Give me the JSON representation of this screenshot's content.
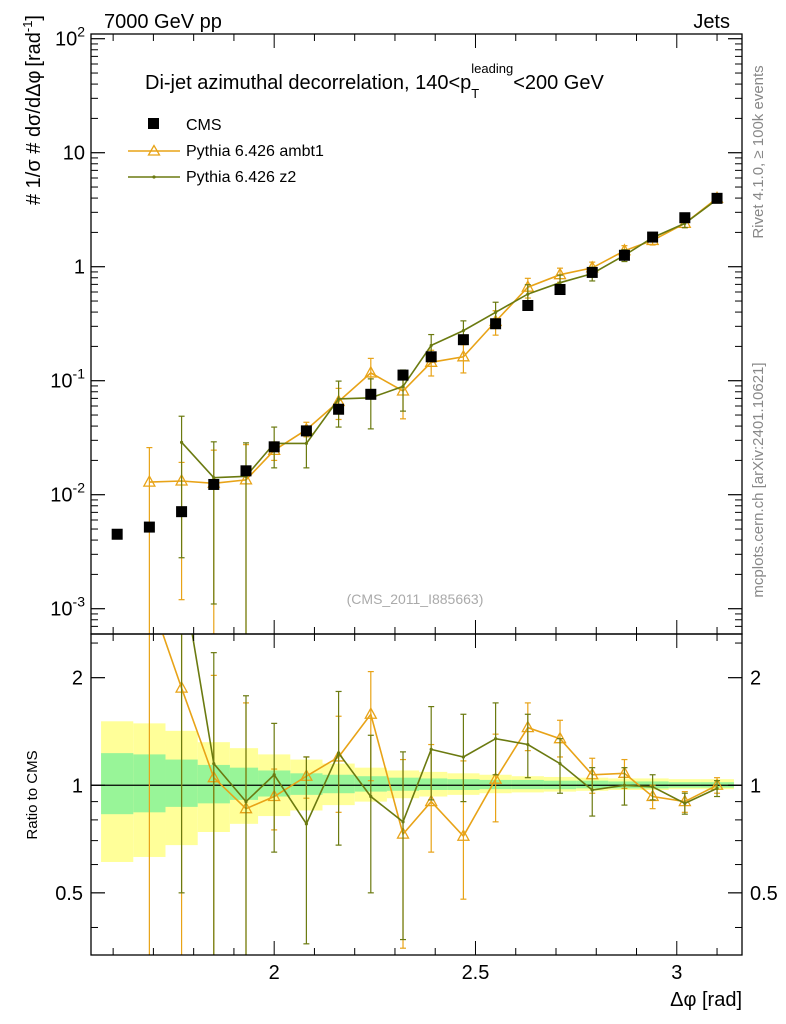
{
  "header": {
    "left": "7000 GeV pp",
    "right": "Jets"
  },
  "side_text": {
    "top": "Rivet 4.1.0, ≥ 100k events",
    "bottom": "mcplots.cern.ch [arXiv:2401.10621]"
  },
  "colors": {
    "data": "#000000",
    "ambt1": "#e8a317",
    "z2": "#6b7a10",
    "band_inner": "#98f598",
    "band_outer": "#ffff99",
    "frame": "#000000"
  },
  "chart_data": [
    {
      "type": "scatter",
      "panel": "main",
      "title_prefix": "Di-jet azimuthal decorrelation, 140<p",
      "title_sub": "T",
      "title_sup": "leading",
      "title_suffix": "<200 GeV",
      "ylabel_text": "# 1/σ # dσ/dΔφ",
      "ylabel_unit": "[rad",
      "ylabel_unit_sup": "-1",
      "ylabel_unit_close": "]",
      "yscale": "log",
      "ylim": [
        0.0006,
        110
      ],
      "xlim": [
        1.545,
        3.162
      ],
      "ytick_values": [
        0.001,
        0.01,
        0.1,
        1,
        10,
        100
      ],
      "ytick_base": "10",
      "ytick_exponents": [
        "-3",
        "-2",
        "-1",
        "",
        "",
        "2"
      ],
      "ytick_plain": [
        "",
        "",
        "",
        "1",
        "10",
        ""
      ],
      "annotation": "(CMS_2011_I885663)",
      "legend": [
        "CMS",
        "Pythia 6.426 ambt1",
        "Pythia 6.426 z2"
      ],
      "x": [
        1.61,
        1.69,
        1.77,
        1.85,
        1.93,
        2.0,
        2.08,
        2.16,
        2.24,
        2.32,
        2.39,
        2.47,
        2.55,
        2.63,
        2.71,
        2.79,
        2.87,
        2.94,
        3.02,
        3.1
      ],
      "series": [
        {
          "name": "CMS",
          "values": [
            0.0045,
            0.0052,
            0.0071,
            0.0123,
            0.0162,
            0.0263,
            0.0363,
            0.0562,
            0.076,
            0.112,
            0.162,
            0.229,
            0.316,
            0.457,
            0.631,
            0.891,
            1.26,
            1.82,
            2.69,
            3.98
          ]
        },
        {
          "name": "Pythia 6.426 ambt1",
          "values": [
            null,
            0.0129,
            0.0132,
            0.0126,
            0.0135,
            0.0245,
            0.0372,
            0.0657,
            0.117,
            0.0813,
            0.145,
            0.162,
            0.331,
            0.661,
            0.851,
            0.977,
            1.38,
            1.7,
            2.4,
            3.98
          ],
          "err_lo": [
            null,
            0.0126,
            0.012,
            0.012,
            0.013,
            0.0045,
            0.005,
            0.02,
            0.04,
            0.035,
            0.035,
            0.045,
            0.08,
            0.13,
            0.12,
            0.12,
            0.15,
            0.15,
            0.2,
            0.25
          ],
          "err_hi": [
            null,
            0.013,
            0.006,
            0.012,
            0.014,
            0.0045,
            0.006,
            0.02,
            0.04,
            0.035,
            0.04,
            0.045,
            0.08,
            0.13,
            0.12,
            0.12,
            0.15,
            0.15,
            0.2,
            0.25
          ]
        },
        {
          "name": "Pythia 6.426 z2",
          "values": [
            null,
            null,
            0.0288,
            0.0141,
            0.0145,
            0.0282,
            0.0282,
            0.0692,
            0.0708,
            0.0891,
            0.204,
            0.275,
            0.398,
            0.575,
            0.724,
            0.87,
            1.26,
            1.8,
            2.4,
            3.89
          ],
          "err_lo": [
            null,
            null,
            0.026,
            0.013,
            0.014,
            0.011,
            0.011,
            0.03,
            0.033,
            0.035,
            0.05,
            0.06,
            0.09,
            0.12,
            0.12,
            0.12,
            0.15,
            0.15,
            0.2,
            0.25
          ],
          "err_hi": [
            null,
            null,
            0.02,
            0.015,
            0.014,
            0.011,
            0.011,
            0.03,
            0.033,
            0.035,
            0.05,
            0.06,
            0.09,
            0.12,
            0.12,
            0.12,
            0.15,
            0.15,
            0.2,
            0.25
          ]
        }
      ]
    },
    {
      "type": "line",
      "panel": "ratio",
      "ylabel": "Ratio to CMS",
      "yscale": "log",
      "ylim": [
        0.335,
        2.65
      ],
      "xlim": [
        1.545,
        3.162
      ],
      "xlabel": "Δφ [rad]",
      "ytick_values": [
        0.5,
        1,
        2
      ],
      "ytick_labels": [
        "0.5",
        "1",
        "2"
      ],
      "xtick_values": [
        2,
        2.5,
        3
      ],
      "xtick_labels": [
        "2",
        "2.5",
        "3"
      ],
      "x": [
        1.61,
        1.69,
        1.77,
        1.85,
        1.93,
        2.0,
        2.08,
        2.16,
        2.24,
        2.32,
        2.39,
        2.47,
        2.55,
        2.63,
        2.71,
        2.79,
        2.87,
        2.94,
        3.02,
        3.1
      ],
      "band_edges": [
        1.57,
        1.65,
        1.73,
        1.81,
        1.89,
        1.96,
        2.04,
        2.12,
        2.2,
        2.28,
        2.36,
        2.43,
        2.51,
        2.59,
        2.67,
        2.75,
        2.83,
        2.9,
        2.98,
        3.06,
        3.142
      ],
      "band_inner": [
        [
          0.83,
          1.23
        ],
        [
          0.84,
          1.22
        ],
        [
          0.87,
          1.18
        ],
        [
          0.89,
          1.14
        ],
        [
          0.91,
          1.12
        ],
        [
          0.93,
          1.1
        ],
        [
          0.94,
          1.08
        ],
        [
          0.95,
          1.07
        ],
        [
          0.96,
          1.06
        ],
        [
          0.965,
          1.05
        ],
        [
          0.97,
          1.045
        ],
        [
          0.97,
          1.04
        ],
        [
          0.975,
          1.035
        ],
        [
          0.975,
          1.035
        ],
        [
          0.975,
          1.03
        ],
        [
          0.98,
          1.03
        ],
        [
          0.98,
          1.025
        ],
        [
          0.98,
          1.025
        ],
        [
          0.985,
          1.02
        ],
        [
          0.985,
          1.02
        ]
      ],
      "band_outer": [
        [
          0.61,
          1.51
        ],
        [
          0.63,
          1.49
        ],
        [
          0.68,
          1.42
        ],
        [
          0.74,
          1.32
        ],
        [
          0.78,
          1.27
        ],
        [
          0.82,
          1.22
        ],
        [
          0.85,
          1.18
        ],
        [
          0.88,
          1.15
        ],
        [
          0.9,
          1.12
        ],
        [
          0.92,
          1.1
        ],
        [
          0.93,
          1.09
        ],
        [
          0.94,
          1.08
        ],
        [
          0.95,
          1.07
        ],
        [
          0.955,
          1.06
        ],
        [
          0.96,
          1.055
        ],
        [
          0.965,
          1.05
        ],
        [
          0.97,
          1.045
        ],
        [
          0.97,
          1.045
        ],
        [
          0.975,
          1.04
        ],
        [
          0.975,
          1.04
        ]
      ],
      "series": [
        {
          "name": "Pythia 6.426 ambt1",
          "values": [
            null,
            3.4,
            1.87,
            1.05,
            0.86,
            0.93,
            1.06,
            1.2,
            1.58,
            0.73,
            0.9,
            0.72,
            1.04,
            1.45,
            1.35,
            1.07,
            1.08,
            0.93,
            0.9,
            1.0
          ],
          "err_lo": [
            null,
            3.3,
            1.55,
            0.98,
            0.84,
            0.18,
            0.14,
            0.36,
            0.55,
            0.38,
            0.25,
            0.24,
            0.25,
            0.2,
            0.15,
            0.12,
            0.1,
            0.07,
            0.06,
            0.05
          ],
          "err_hi": [
            null,
            3.3,
            0.85,
            0.98,
            0.84,
            0.18,
            0.14,
            0.36,
            0.5,
            0.45,
            0.4,
            0.45,
            0.35,
            0.25,
            0.17,
            0.12,
            0.1,
            0.07,
            0.06,
            0.05
          ]
        },
        {
          "name": "Pythia 6.426 z2",
          "values": [
            null,
            null,
            4.0,
            1.15,
            0.9,
            1.07,
            0.78,
            1.23,
            0.93,
            0.79,
            1.26,
            1.2,
            1.35,
            1.3,
            1.15,
            0.97,
            1.0,
            0.99,
            0.89,
            0.98
          ],
          "err_lo": [
            null,
            null,
            3.5,
            1.1,
            0.88,
            0.42,
            0.42,
            0.55,
            0.43,
            0.42,
            0.35,
            0.3,
            0.28,
            0.25,
            0.2,
            0.15,
            0.12,
            0.08,
            0.06,
            0.05
          ],
          "err_hi": [
            null,
            null,
            2.5,
            1.2,
            0.88,
            0.42,
            0.42,
            0.6,
            0.45,
            0.45,
            0.4,
            0.38,
            0.35,
            0.28,
            0.2,
            0.15,
            0.12,
            0.08,
            0.06,
            0.05
          ]
        }
      ]
    }
  ]
}
